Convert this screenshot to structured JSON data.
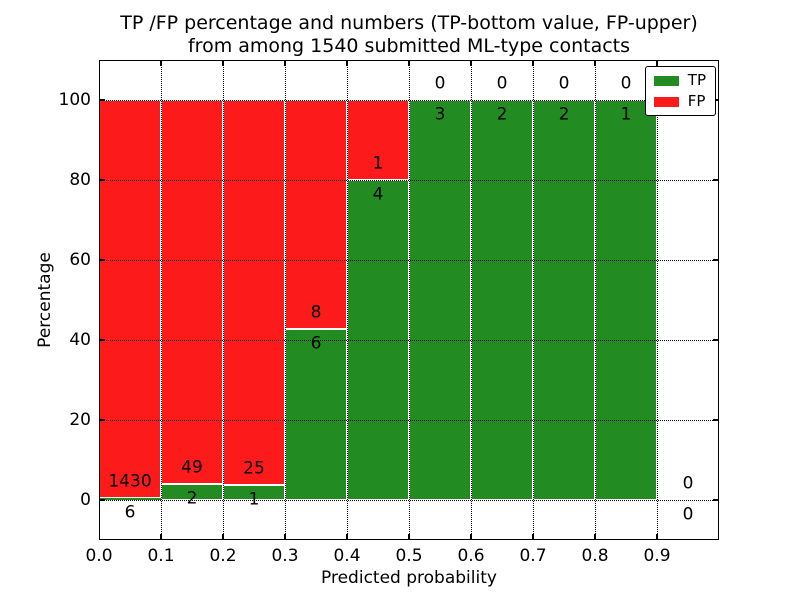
{
  "chart_data": {
    "type": "bar",
    "stacked": true,
    "title_lines": [
      "TP /FP percentage and numbers (TP-bottom value, FP-upper)",
      "from among 1540 submitted ML-type contacts"
    ],
    "title": "TP /FP percentage and numbers (TP-bottom value, FP-upper) from among 1540 submitted ML-type contacts",
    "total_submitted": 1540,
    "xlabel": "Predicted probability",
    "ylabel": "Percentage",
    "xlim": [
      0.0,
      1.0
    ],
    "ylim": [
      -10,
      110
    ],
    "xticks": [
      "0.0",
      "0.1",
      "0.2",
      "0.3",
      "0.4",
      "0.5",
      "0.6",
      "0.7",
      "0.8",
      "0.9"
    ],
    "yticks": [
      0,
      20,
      40,
      60,
      80,
      100
    ],
    "grid": "dotted",
    "legend": {
      "position": "upper-right",
      "entries": [
        {
          "label": "TP",
          "color": "#228b22"
        },
        {
          "label": "FP",
          "color": "#fc1a1a"
        }
      ]
    },
    "bins": [
      {
        "range": [
          0.0,
          0.1
        ],
        "tp": 6,
        "fp": 1430
      },
      {
        "range": [
          0.1,
          0.2
        ],
        "tp": 2,
        "fp": 49
      },
      {
        "range": [
          0.2,
          0.3
        ],
        "tp": 1,
        "fp": 25
      },
      {
        "range": [
          0.3,
          0.4
        ],
        "tp": 6,
        "fp": 8
      },
      {
        "range": [
          0.4,
          0.5
        ],
        "tp": 4,
        "fp": 1
      },
      {
        "range": [
          0.5,
          0.6
        ],
        "tp": 3,
        "fp": 0
      },
      {
        "range": [
          0.6,
          0.7
        ],
        "tp": 2,
        "fp": 0
      },
      {
        "range": [
          0.7,
          0.8
        ],
        "tp": 2,
        "fp": 0
      },
      {
        "range": [
          0.8,
          0.9
        ],
        "tp": 1,
        "fp": 0
      },
      {
        "range": [
          0.9,
          1.0
        ],
        "tp": 0,
        "fp": 0
      }
    ],
    "colors": {
      "tp": "#228b22",
      "fp": "#fc1a1a",
      "grid": "#000000",
      "bar_edge": "#ffffff",
      "background": "#ffffff",
      "text": "#000000"
    }
  }
}
